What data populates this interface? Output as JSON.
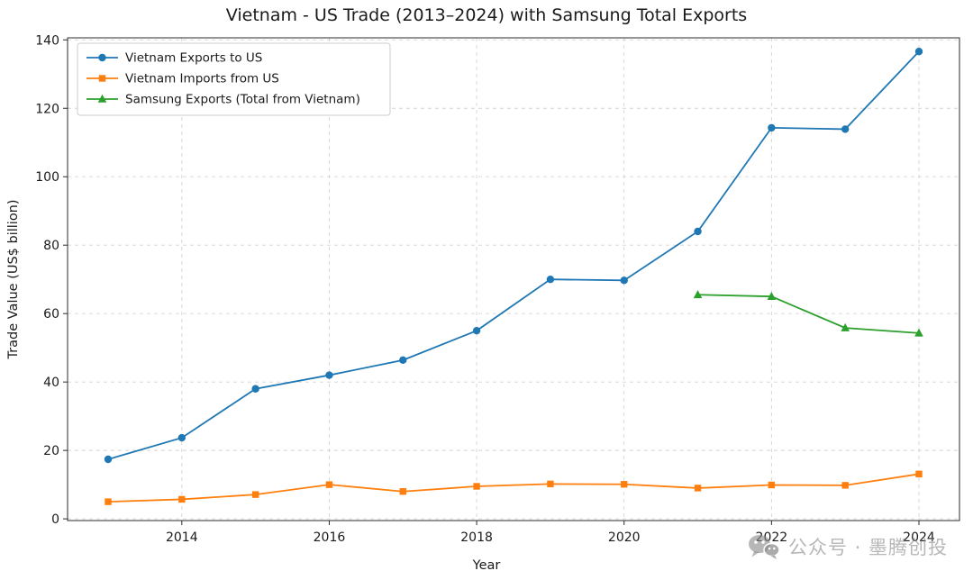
{
  "chart_data": {
    "type": "line",
    "title": "Vietnam - US Trade (2013–2024) with Samsung Total Exports",
    "xlabel": "Year",
    "ylabel": "Trade Value (US$ billion)",
    "x": [
      2013,
      2014,
      2015,
      2016,
      2017,
      2018,
      2019,
      2020,
      2021,
      2022,
      2023,
      2024
    ],
    "series": [
      {
        "name": "Vietnam Exports to US",
        "color": "#1f77b4",
        "marker": "circle",
        "values": [
          17.4,
          23.7,
          38.0,
          42.0,
          46.4,
          55.0,
          70.0,
          69.7,
          84.0,
          114.3,
          113.9,
          136.6
        ]
      },
      {
        "name": "Vietnam Imports from US",
        "color": "#ff7f0e",
        "marker": "square",
        "values": [
          5.0,
          5.7,
          7.1,
          10.0,
          8.0,
          9.5,
          10.2,
          10.1,
          9.0,
          9.9,
          9.8,
          13.1
        ]
      },
      {
        "name": "Samsung Exports (Total from Vietnam)",
        "color": "#2ca02c",
        "marker": "triangle",
        "values": [
          null,
          null,
          null,
          null,
          null,
          null,
          null,
          null,
          65.5,
          65.0,
          55.8,
          54.3
        ]
      }
    ],
    "xticks": [
      2014,
      2016,
      2018,
      2020,
      2022,
      2024
    ],
    "yticks": [
      0,
      20,
      40,
      60,
      80,
      100,
      120,
      140
    ],
    "xlim": [
      2012.45,
      2024.55
    ],
    "ylim": [
      -0.5,
      140.6
    ],
    "grid": true,
    "grid_style": "dashed",
    "legend_position": "upper left"
  },
  "watermark": {
    "text": "公众号 · 墨腾创投"
  }
}
